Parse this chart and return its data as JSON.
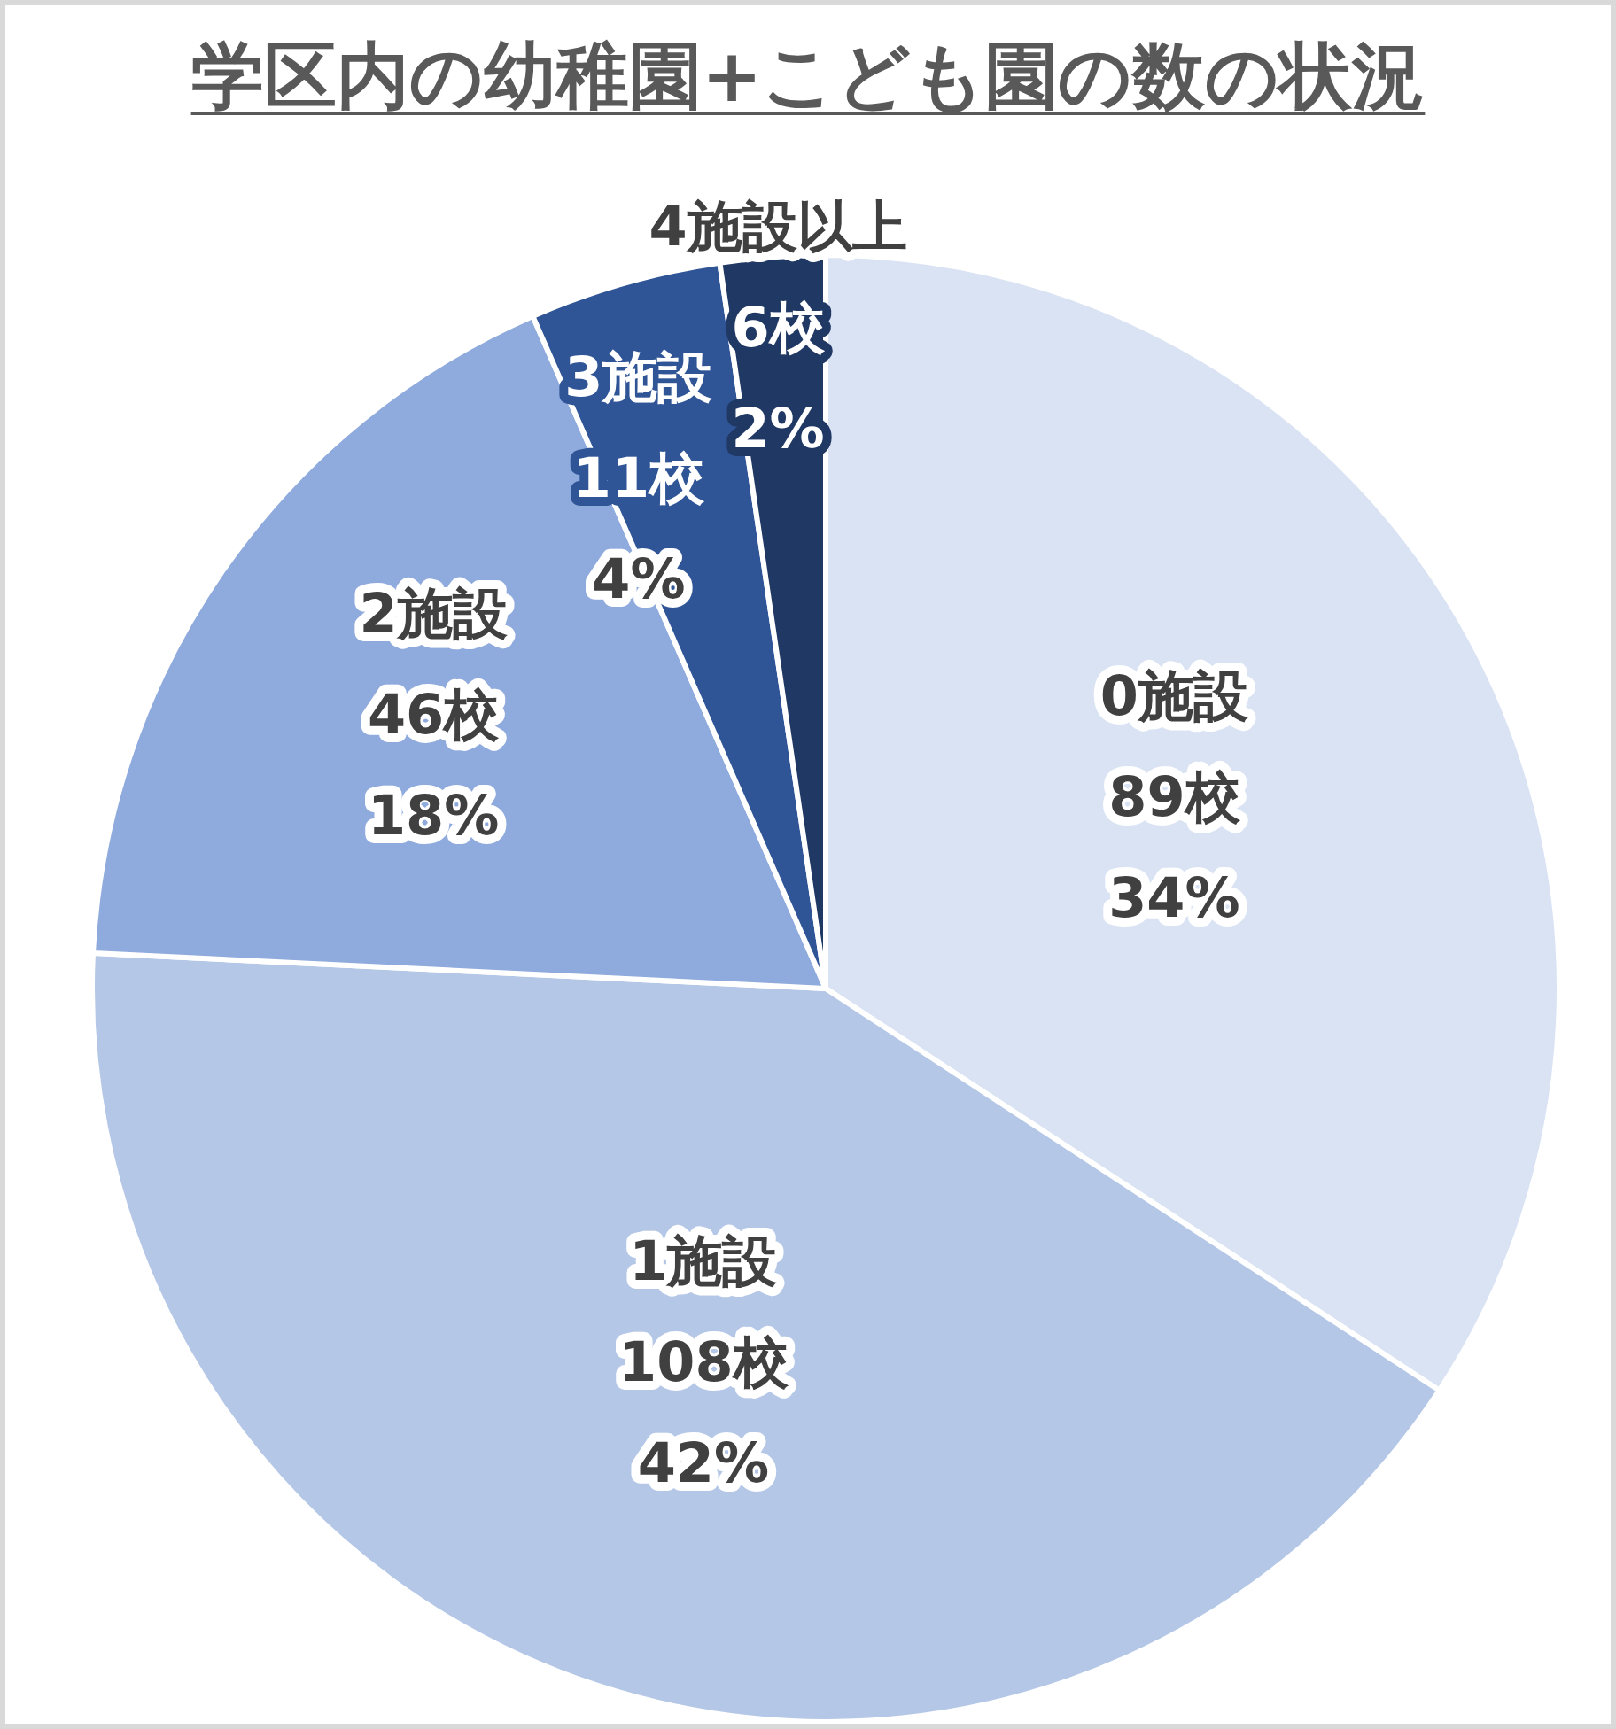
{
  "chart_data": {
    "type": "pie",
    "title": "学区内の幼稚園+こども園の数の状況",
    "categories": [
      "0施設",
      "1施設",
      "2施設",
      "3施設",
      "4施設以上"
    ],
    "values": [
      89,
      108,
      46,
      11,
      6
    ],
    "colors": [
      "#dae3f3",
      "#b4c7e7",
      "#8faadc",
      "#2f5597",
      "#203864"
    ],
    "value_labels": [
      "89校\n34%",
      "108校\n42%",
      "46校\n18%",
      "11校\n4%",
      "6校\n2%"
    ]
  }
}
